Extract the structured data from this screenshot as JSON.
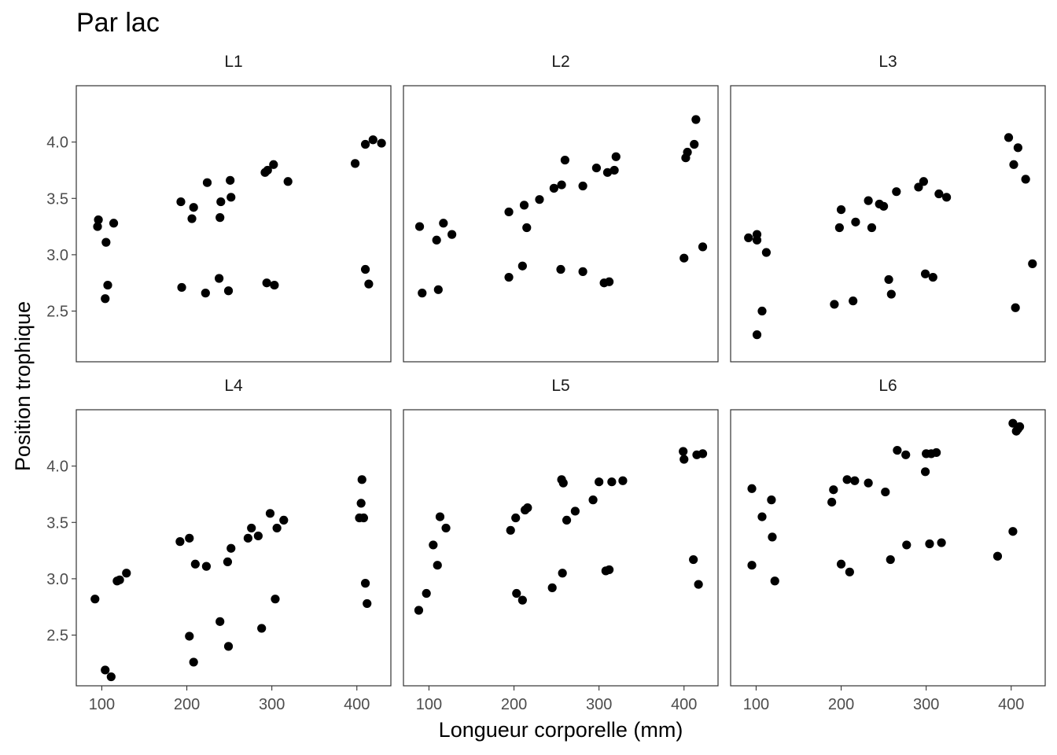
{
  "chart_data": {
    "type": "scatter",
    "title": "Par lac",
    "xlabel": "Longueur corporelle (mm)",
    "ylabel": "Position trophique",
    "xlim": [
      70,
      440
    ],
    "ylim": [
      2.05,
      4.5
    ],
    "xticks": [
      100,
      200,
      300,
      400
    ],
    "yticks": [
      2.5,
      3.0,
      3.5,
      4.0
    ],
    "x_tick_labels": [
      "100",
      "200",
      "300",
      "400"
    ],
    "y_tick_labels": [
      "2.5",
      "3.0",
      "3.5",
      "4.0"
    ],
    "grid": false,
    "color": "#000000",
    "panels": [
      {
        "label": "L1",
        "points": [
          [
            96,
            3.31
          ],
          [
            95,
            3.25
          ],
          [
            105,
            3.11
          ],
          [
            114,
            3.28
          ],
          [
            107,
            2.73
          ],
          [
            104,
            2.61
          ],
          [
            193,
            3.47
          ],
          [
            194,
            2.71
          ],
          [
            206,
            3.32
          ],
          [
            208,
            3.42
          ],
          [
            222,
            2.66
          ],
          [
            224,
            3.64
          ],
          [
            238,
            2.79
          ],
          [
            239,
            3.33
          ],
          [
            240,
            3.47
          ],
          [
            249,
            2.68
          ],
          [
            251,
            3.66
          ],
          [
            252,
            3.51
          ],
          [
            292,
            3.73
          ],
          [
            295,
            3.75
          ],
          [
            294,
            2.75
          ],
          [
            302,
            3.8
          ],
          [
            303,
            2.73
          ],
          [
            319,
            3.65
          ],
          [
            398,
            3.81
          ],
          [
            410,
            3.98
          ],
          [
            419,
            4.02
          ],
          [
            429,
            3.99
          ],
          [
            410,
            2.87
          ],
          [
            414,
            2.74
          ]
        ]
      },
      {
        "label": "L2",
        "points": [
          [
            89,
            3.25
          ],
          [
            92,
            2.66
          ],
          [
            109,
            3.13
          ],
          [
            111,
            2.69
          ],
          [
            117,
            3.28
          ],
          [
            127,
            3.18
          ],
          [
            194,
            3.38
          ],
          [
            194,
            2.8
          ],
          [
            210,
            2.9
          ],
          [
            212,
            3.44
          ],
          [
            215,
            3.24
          ],
          [
            230,
            3.49
          ],
          [
            247,
            3.59
          ],
          [
            255,
            2.87
          ],
          [
            256,
            3.62
          ],
          [
            260,
            3.84
          ],
          [
            281,
            2.85
          ],
          [
            281,
            3.61
          ],
          [
            297,
            3.77
          ],
          [
            306,
            2.75
          ],
          [
            310,
            3.73
          ],
          [
            312,
            2.76
          ],
          [
            318,
            3.75
          ],
          [
            320,
            3.87
          ],
          [
            400,
            2.97
          ],
          [
            402,
            3.86
          ],
          [
            404,
            3.91
          ],
          [
            412,
            3.98
          ],
          [
            414,
            4.2
          ],
          [
            422,
            3.07
          ]
        ]
      },
      {
        "label": "L3",
        "points": [
          [
            91,
            3.15
          ],
          [
            101,
            3.18
          ],
          [
            101,
            3.13
          ],
          [
            101,
            2.29
          ],
          [
            107,
            2.5
          ],
          [
            112,
            3.02
          ],
          [
            192,
            2.56
          ],
          [
            198,
            3.24
          ],
          [
            200,
            3.4
          ],
          [
            214,
            2.59
          ],
          [
            217,
            3.29
          ],
          [
            232,
            3.48
          ],
          [
            236,
            3.24
          ],
          [
            245,
            3.45
          ],
          [
            250,
            3.43
          ],
          [
            256,
            2.78
          ],
          [
            259,
            2.65
          ],
          [
            265,
            3.56
          ],
          [
            291,
            3.6
          ],
          [
            297,
            3.65
          ],
          [
            299,
            2.83
          ],
          [
            308,
            2.8
          ],
          [
            315,
            3.54
          ],
          [
            324,
            3.51
          ],
          [
            397,
            4.04
          ],
          [
            403,
            3.8
          ],
          [
            405,
            2.53
          ],
          [
            408,
            3.95
          ],
          [
            417,
            3.67
          ],
          [
            425,
            2.92
          ]
        ]
      },
      {
        "label": "L4",
        "points": [
          [
            92,
            2.82
          ],
          [
            104,
            2.19
          ],
          [
            111,
            2.13
          ],
          [
            118,
            2.98
          ],
          [
            121,
            2.99
          ],
          [
            129,
            3.05
          ],
          [
            192,
            3.33
          ],
          [
            203,
            3.36
          ],
          [
            203,
            2.49
          ],
          [
            208,
            2.26
          ],
          [
            210,
            3.13
          ],
          [
            223,
            3.11
          ],
          [
            239,
            2.62
          ],
          [
            248,
            3.15
          ],
          [
            249,
            2.4
          ],
          [
            252,
            3.27
          ],
          [
            272,
            3.36
          ],
          [
            276,
            3.45
          ],
          [
            284,
            3.38
          ],
          [
            288,
            2.56
          ],
          [
            298,
            3.58
          ],
          [
            304,
            2.82
          ],
          [
            306,
            3.45
          ],
          [
            314,
            3.52
          ],
          [
            403,
            3.54
          ],
          [
            405,
            3.67
          ],
          [
            406,
            3.88
          ],
          [
            408,
            3.54
          ],
          [
            410,
            2.96
          ],
          [
            412,
            2.78
          ]
        ]
      },
      {
        "label": "L5",
        "points": [
          [
            88,
            2.72
          ],
          [
            97,
            2.87
          ],
          [
            105,
            3.3
          ],
          [
            110,
            3.12
          ],
          [
            113,
            3.55
          ],
          [
            120,
            3.45
          ],
          [
            196,
            3.43
          ],
          [
            202,
            3.54
          ],
          [
            203,
            2.87
          ],
          [
            210,
            2.81
          ],
          [
            213,
            3.61
          ],
          [
            216,
            3.63
          ],
          [
            245,
            2.92
          ],
          [
            256,
            3.88
          ],
          [
            257,
            3.05
          ],
          [
            258,
            3.85
          ],
          [
            262,
            3.52
          ],
          [
            272,
            3.6
          ],
          [
            293,
            3.7
          ],
          [
            300,
            3.86
          ],
          [
            308,
            3.07
          ],
          [
            312,
            3.08
          ],
          [
            315,
            3.86
          ],
          [
            328,
            3.87
          ],
          [
            399,
            4.13
          ],
          [
            400,
            4.06
          ],
          [
            411,
            3.17
          ],
          [
            415,
            4.1
          ],
          [
            417,
            2.95
          ],
          [
            422,
            4.11
          ]
        ]
      },
      {
        "label": "L6",
        "points": [
          [
            95,
            3.8
          ],
          [
            95,
            3.12
          ],
          [
            107,
            3.55
          ],
          [
            118,
            3.7
          ],
          [
            119,
            3.37
          ],
          [
            122,
            2.98
          ],
          [
            189,
            3.68
          ],
          [
            191,
            3.79
          ],
          [
            200,
            3.13
          ],
          [
            207,
            3.88
          ],
          [
            210,
            3.06
          ],
          [
            216,
            3.87
          ],
          [
            232,
            3.85
          ],
          [
            252,
            3.77
          ],
          [
            258,
            3.17
          ],
          [
            266,
            4.14
          ],
          [
            276,
            4.1
          ],
          [
            277,
            3.3
          ],
          [
            299,
            3.95
          ],
          [
            300,
            4.11
          ],
          [
            304,
            3.31
          ],
          [
            306,
            4.11
          ],
          [
            312,
            4.12
          ],
          [
            318,
            3.32
          ],
          [
            384,
            3.2
          ],
          [
            402,
            3.42
          ],
          [
            402,
            4.38
          ],
          [
            406,
            4.31
          ],
          [
            408,
            4.33
          ],
          [
            410,
            4.35
          ]
        ]
      }
    ]
  }
}
